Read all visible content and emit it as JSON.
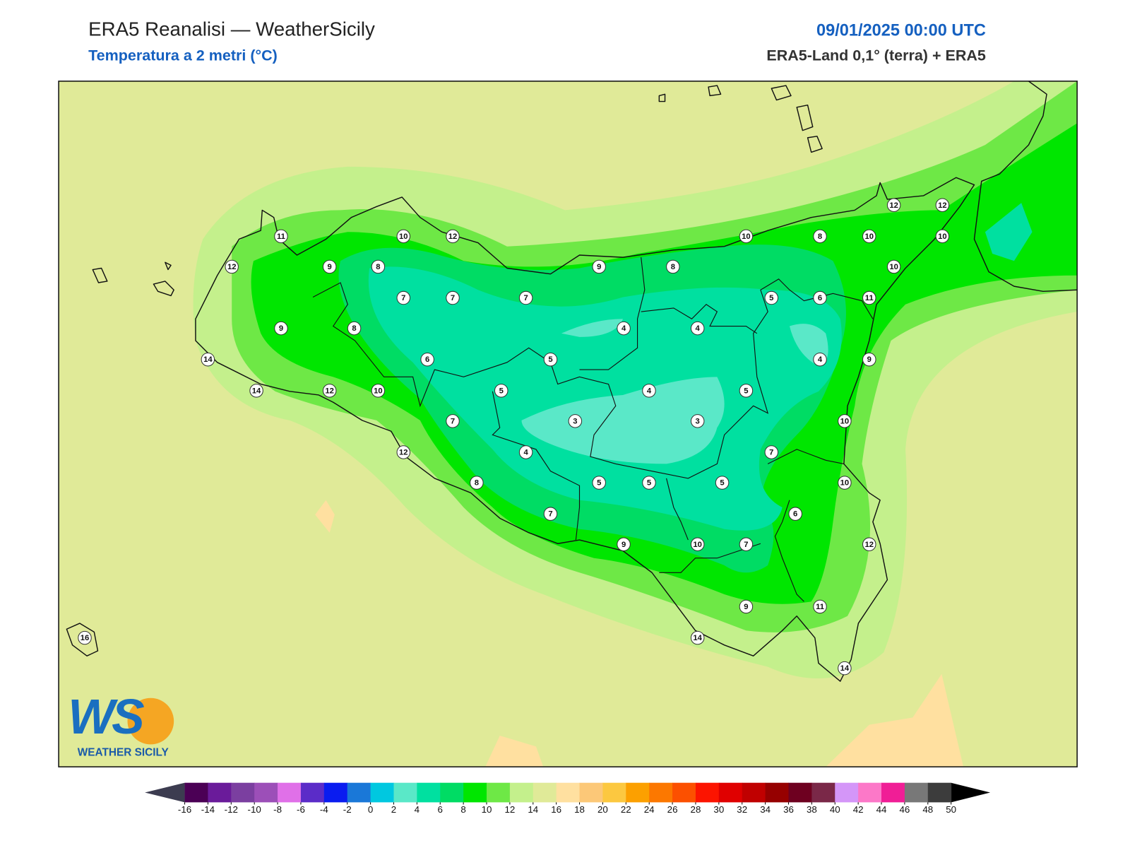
{
  "header": {
    "title": "ERA5 Reanalisi — WeatherSicily",
    "subtitle": "Temperatura a 2 metri (°C)",
    "datetime": "09/01/2025 00:00 UTC",
    "source": "ERA5-Land 0,1° (terra) + ERA5"
  },
  "logo": {
    "mark": "WS",
    "text": "WEATHER SICILY"
  },
  "stations": [
    {
      "value": 11
    },
    {
      "value": 10
    },
    {
      "value": 12
    },
    {
      "value": 10
    },
    {
      "value": 8
    },
    {
      "value": 10
    },
    {
      "value": 10
    },
    {
      "value": 12
    },
    {
      "value": 12
    },
    {
      "value": 12
    },
    {
      "value": 9
    },
    {
      "value": 8
    },
    {
      "value": 9
    },
    {
      "value": 8
    },
    {
      "value": 10
    },
    {
      "value": 7
    },
    {
      "value": 7
    },
    {
      "value": 7
    },
    {
      "value": 5
    },
    {
      "value": 6
    },
    {
      "value": 11
    },
    {
      "value": 9
    },
    {
      "value": 8
    },
    {
      "value": 4
    },
    {
      "value": 4
    },
    {
      "value": 14
    },
    {
      "value": 6
    },
    {
      "value": 5
    },
    {
      "value": 4
    },
    {
      "value": 9
    },
    {
      "value": 14
    },
    {
      "value": 12
    },
    {
      "value": 10
    },
    {
      "value": 5
    },
    {
      "value": 4
    },
    {
      "value": 5
    },
    {
      "value": 7
    },
    {
      "value": 3
    },
    {
      "value": 3
    },
    {
      "value": 10
    },
    {
      "value": 12
    },
    {
      "value": 4
    },
    {
      "value": 7
    },
    {
      "value": 8
    },
    {
      "value": 5
    },
    {
      "value": 5
    },
    {
      "value": 5
    },
    {
      "value": 10
    },
    {
      "value": 7
    },
    {
      "value": 6
    },
    {
      "value": 9
    },
    {
      "value": 10
    },
    {
      "value": 7
    },
    {
      "value": 12
    },
    {
      "value": 9
    },
    {
      "value": 11
    },
    {
      "value": 16
    },
    {
      "value": 14
    },
    {
      "value": 14
    }
  ],
  "colorbar": {
    "ticks": [
      -16,
      -14,
      -12,
      -10,
      -8,
      -6,
      -4,
      -2,
      0,
      2,
      4,
      6,
      8,
      10,
      12,
      14,
      16,
      18,
      20,
      22,
      24,
      26,
      28,
      30,
      32,
      34,
      36,
      38,
      40,
      42,
      44,
      46,
      48,
      50
    ],
    "colors": [
      "#4b0055",
      "#6a1b9a",
      "#7b3fa0",
      "#9c4fb8",
      "#e070e8",
      "#5b2cc8",
      "#0a1cf0",
      "#1a78d8",
      "#00c8e0",
      "#5ae8c8",
      "#00e0a0",
      "#00dc64",
      "#00e600",
      "#6ee846",
      "#c4f08c",
      "#e0ea98",
      "#ffe0a0",
      "#fcc878",
      "#fcc840",
      "#fca000",
      "#fc7800",
      "#fc5000",
      "#fc1400",
      "#e00000",
      "#c00000",
      "#960000",
      "#6e0020",
      "#7a2848",
      "#d496f8",
      "#fc78c8",
      "#f01e96",
      "#787878",
      "#3c3c3c"
    ],
    "under_color": "#3c3c50",
    "over_color": "#000000"
  }
}
